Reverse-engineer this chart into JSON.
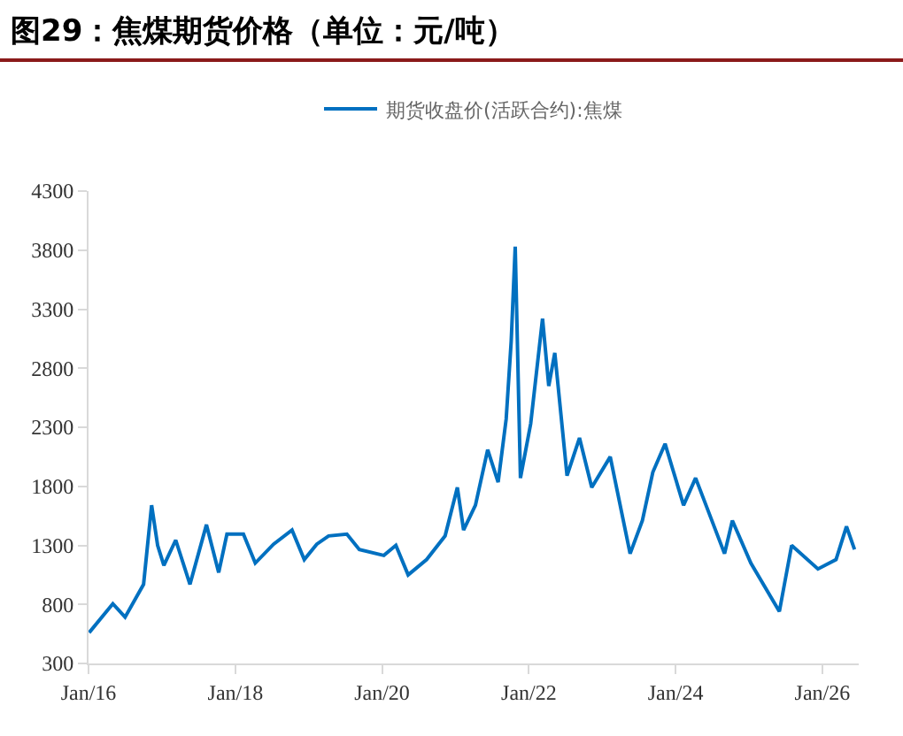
{
  "chart_data": {
    "type": "line",
    "title": "图29：焦煤期货价格（单位：元/吨）",
    "x": [
      "2016-01-04",
      "2016-05-01",
      "2016-07-01",
      "2016-10-01",
      "2016-11-10",
      "2016-12-10",
      "2017-01-10",
      "2017-03-10",
      "2017-05-20",
      "2017-08-10",
      "2017-10-10",
      "2017-11-20",
      "2018-02-10",
      "2018-04-10",
      "2018-07-10",
      "2018-10-10",
      "2018-12-10",
      "2019-02-10",
      "2019-04-10",
      "2019-07-10",
      "2019-09-10",
      "2020-01-10",
      "2020-03-10",
      "2020-05-10",
      "2020-08-10",
      "2020-11-10",
      "2021-01-10",
      "2021-02-10",
      "2021-04-10",
      "2021-06-10",
      "2021-08-01",
      "2021-09-10",
      "2021-10-05",
      "2021-10-25",
      "2021-11-20",
      "2022-01-10",
      "2022-03-10",
      "2022-04-10",
      "2022-05-10",
      "2022-07-10",
      "2022-09-10",
      "2022-11-10",
      "2023-02-10",
      "2023-05-20",
      "2023-07-20",
      "2023-09-10",
      "2023-11-10",
      "2024-02-10",
      "2024-04-10",
      "2024-09-01",
      "2024-10-10",
      "2025-01-10",
      "2025-06-01",
      "2025-08-01",
      "2025-12-10",
      "2026-03-10",
      "2026-05-01",
      "2026-06-10"
    ],
    "series": [
      {
        "name": "期货收盘价(活跃合约):焦煤",
        "color": "#0070c0",
        "values": [
          561,
          806,
          692,
          970,
          1640,
          1300,
          1130,
          1345,
          970,
          1475,
          1070,
          1395,
          1395,
          1150,
          1310,
          1430,
          1180,
          1310,
          1380,
          1395,
          1265,
          1215,
          1300,
          1050,
          1180,
          1380,
          1790,
          1430,
          1640,
          2110,
          1835,
          2370,
          3030,
          3830,
          1870,
          2330,
          3220,
          2650,
          2930,
          1890,
          2210,
          1790,
          2050,
          1230,
          1510,
          1920,
          2160,
          1640,
          1870,
          1230,
          1510,
          1150,
          740,
          1300,
          1100,
          1180,
          1460,
          1265
        ]
      }
    ],
    "xlim": [
      "2016-01-01",
      "2026-07-01"
    ],
    "xticks": [
      {
        "value": "2016-01-01",
        "label": "Jan/16"
      },
      {
        "value": "2018-01-01",
        "label": "Jan/18"
      },
      {
        "value": "2020-01-01",
        "label": "Jan/20"
      },
      {
        "value": "2022-01-01",
        "label": "Jan/22"
      },
      {
        "value": "2024-01-01",
        "label": "Jan/24"
      },
      {
        "value": "2026-01-01",
        "label": "Jan/26"
      }
    ],
    "ylim": [
      300,
      4300
    ],
    "yticks": [
      300,
      800,
      1300,
      1800,
      2300,
      2800,
      3300,
      3800,
      4300
    ],
    "legend": "top",
    "line_style": "solid",
    "marker": "none"
  }
}
